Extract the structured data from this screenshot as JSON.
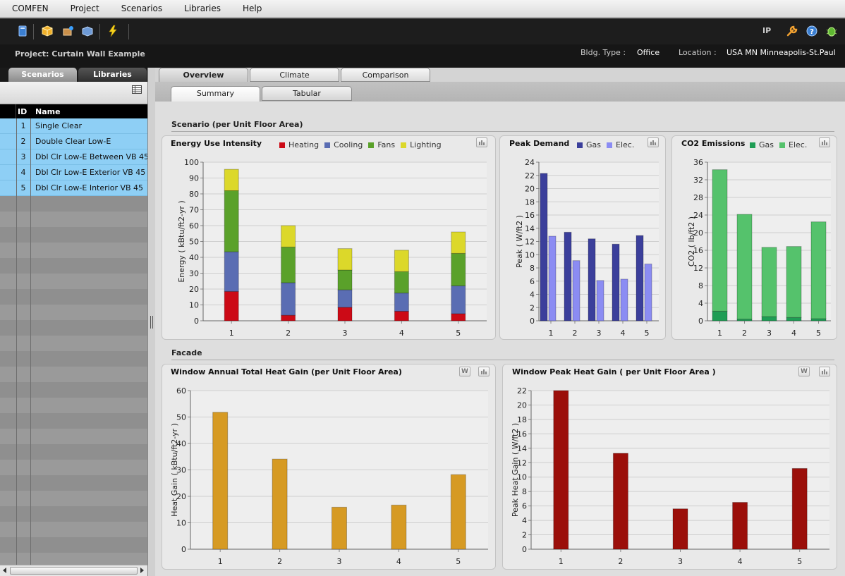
{
  "menu": [
    "COMFEN",
    "Project",
    "Scenarios",
    "Libraries",
    "Help"
  ],
  "toolbar": {
    "units": "IP"
  },
  "project": {
    "label": "Project: Curtain Wall Example",
    "bldg_type_label": "Bldg. Type :",
    "bldg_type": "Office",
    "location_label": "Location :",
    "location": "USA MN Minneapolis-St.Paul"
  },
  "left": {
    "tabs": [
      "Scenarios",
      "Libraries"
    ],
    "columns": {
      "id": "ID",
      "name": "Name"
    },
    "rows": [
      {
        "id": "1",
        "name": "Single Clear"
      },
      {
        "id": "2",
        "name": "Double Clear Low-E"
      },
      {
        "id": "3",
        "name": "Dbl Clr Low-E Between VB 45"
      },
      {
        "id": "4",
        "name": "Dbl Clr Low-E Exterior VB 45"
      },
      {
        "id": "5",
        "name": "Dbl Clr Low-E Interior VB 45"
      }
    ]
  },
  "main": {
    "tabs": [
      "Overview",
      "Climate",
      "Comparison"
    ],
    "subtabs": [
      "Summary",
      "Tabular"
    ],
    "section_scenario": "Scenario (per Unit Floor Area)",
    "section_facade": "Facade"
  },
  "colors": {
    "heating": "#cc0a16",
    "cooling": "#5a6db3",
    "fans": "#5aa12a",
    "lighting": "#dcd82a",
    "gas_peak": "#3b3f9b",
    "elec_peak": "#8b8cf3",
    "gas_co2": "#1f9d55",
    "elec_co2": "#55c26c",
    "heat_gain": "#d69a23",
    "peak_heat_gain": "#9b0f0a"
  },
  "chart_data": [
    {
      "type": "bar",
      "title": "Energy Use Intensity",
      "ylabel": "Energy ( kBtu/ft2-yr )",
      "categories": [
        "1",
        "2",
        "3",
        "4",
        "5"
      ],
      "ylim": [
        0,
        100
      ],
      "yticks": [
        "0",
        "10",
        "20",
        "30",
        "40",
        "50",
        "60",
        "70",
        "80",
        "90",
        "100"
      ],
      "stacked": true,
      "series": [
        {
          "name": "Heating",
          "values": [
            18.5,
            3.5,
            8.5,
            6,
            4.5
          ]
        },
        {
          "name": "Cooling",
          "values": [
            25,
            20.5,
            11,
            11.5,
            17.5
          ]
        },
        {
          "name": "Fans",
          "values": [
            38.5,
            22.5,
            12.5,
            13.5,
            20.5
          ]
        },
        {
          "name": "Lighting",
          "values": [
            13.5,
            13.5,
            13.5,
            13.5,
            13.5
          ]
        }
      ]
    },
    {
      "type": "bar",
      "title": "Peak Demand",
      "ylabel": "Peak ( W/ft2 )",
      "categories": [
        "1",
        "2",
        "3",
        "4",
        "5"
      ],
      "ylim": [
        0,
        24
      ],
      "yticks": [
        "0",
        "2",
        "4",
        "6",
        "8",
        "10",
        "12",
        "14",
        "16",
        "18",
        "20",
        "22",
        "24"
      ],
      "series": [
        {
          "name": "Gas",
          "values": [
            22.3,
            13.4,
            12.4,
            11.6,
            12.9
          ]
        },
        {
          "name": "Elec.",
          "values": [
            12.8,
            9.1,
            6.1,
            6.3,
            8.6
          ]
        }
      ]
    },
    {
      "type": "bar",
      "title": "CO2 Emissions",
      "ylabel": "CO2 ( lb/ft2 )",
      "categories": [
        "1",
        "2",
        "3",
        "4",
        "5"
      ],
      "ylim": [
        0,
        38
      ],
      "yticks": [
        "0",
        "4",
        "8",
        "12",
        "16",
        "20",
        "24",
        "28",
        "32",
        "36"
      ],
      "stacked": true,
      "series": [
        {
          "name": "Gas",
          "values": [
            2.3,
            0.4,
            1.0,
            0.8,
            0.5
          ]
        },
        {
          "name": "Elec.",
          "values": [
            33.9,
            25.1,
            16.6,
            17.0,
            23.2
          ]
        }
      ]
    },
    {
      "type": "bar",
      "title": "Window Annual Total Heat Gain (per Unit Floor Area)",
      "ylabel": "Heat Gain ( kBtu/ft2-yr )",
      "categories": [
        "1",
        "2",
        "3",
        "4",
        "5"
      ],
      "ylim": [
        0,
        60
      ],
      "yticks": [
        "0",
        "10",
        "20",
        "30",
        "40",
        "50",
        "60"
      ],
      "series": [
        {
          "values": [
            51.8,
            34.1,
            15.9,
            16.7,
            28.2
          ]
        }
      ]
    },
    {
      "type": "bar",
      "title": "Window Peak Heat Gain ( per Unit Floor Area )",
      "ylabel": "Peak Heat Gain ( W/ft2 )",
      "categories": [
        "1",
        "2",
        "3",
        "4",
        "5"
      ],
      "ylim": [
        0,
        22
      ],
      "yticks": [
        "0",
        "2",
        "4",
        "6",
        "8",
        "10",
        "12",
        "14",
        "16",
        "18",
        "20",
        "22"
      ],
      "series": [
        {
          "values": [
            22,
            13.3,
            5.6,
            6.5,
            11.2
          ]
        }
      ]
    }
  ]
}
